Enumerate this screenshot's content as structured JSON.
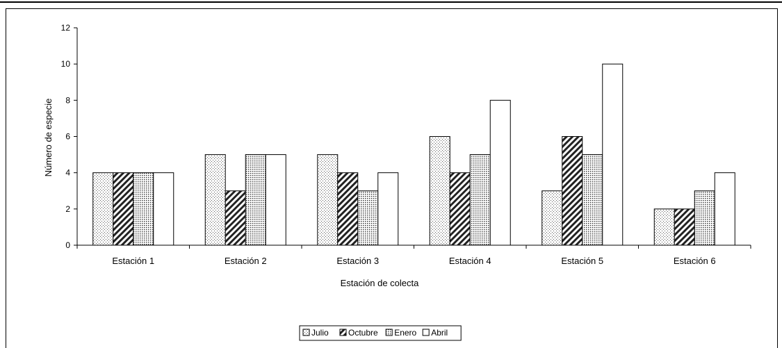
{
  "chart_data": {
    "type": "bar",
    "title": "",
    "xlabel": "Estación de colecta",
    "ylabel": "Número de especie",
    "categories": [
      "Estación 1",
      "Estación 2",
      "Estación 3",
      "Estación 4",
      "Estación 5",
      "Estación 6"
    ],
    "ylim": [
      0,
      12
    ],
    "yticks": [
      "0",
      "2",
      "4",
      "6",
      "8",
      "10",
      "12"
    ],
    "grid": false,
    "legend_position": "bottom",
    "series": [
      {
        "name": "Julio",
        "values": [
          4,
          5,
          5,
          6,
          3,
          2
        ],
        "pattern": "dots",
        "color": "#f2f2f2"
      },
      {
        "name": "Octubre",
        "values": [
          4,
          3,
          4,
          4,
          6,
          2
        ],
        "pattern": "diagonal",
        "color": "#444444"
      },
      {
        "name": "Enero",
        "values": [
          4,
          5,
          3,
          5,
          5,
          3
        ],
        "pattern": "dense-dots",
        "color": "#d9d9d9"
      },
      {
        "name": "Abril",
        "values": [
          4,
          5,
          4,
          8,
          10,
          4
        ],
        "pattern": "none",
        "color": "#ffffff"
      }
    ]
  }
}
